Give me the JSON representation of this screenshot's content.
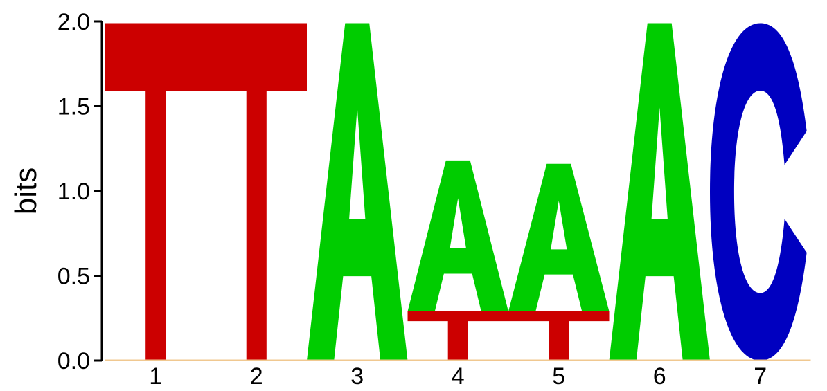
{
  "chart_data": {
    "type": "sequence-logo",
    "ylabel": "bits",
    "ylim": [
      0,
      2
    ],
    "yticks": [
      "0.0",
      "0.5",
      "1.0",
      "1.5",
      "2.0"
    ],
    "positions": [
      "1",
      "2",
      "3",
      "4",
      "5",
      "6",
      "7"
    ],
    "colors": {
      "A": "#00cc00",
      "C": "#0000c0",
      "G": "#ffb300",
      "T": "#cc0000"
    },
    "stacks": [
      [
        {
          "letter": "T",
          "bits": 1.99
        }
      ],
      [
        {
          "letter": "T",
          "bits": 1.99
        }
      ],
      [
        {
          "letter": "A",
          "bits": 1.99
        }
      ],
      [
        {
          "letter": "T",
          "bits": 0.29
        },
        {
          "letter": "A",
          "bits": 0.89
        }
      ],
      [
        {
          "letter": "T",
          "bits": 0.29
        },
        {
          "letter": "A",
          "bits": 0.87
        }
      ],
      [
        {
          "letter": "A",
          "bits": 1.99
        }
      ],
      [
        {
          "letter": "C",
          "bits": 1.99
        }
      ]
    ]
  }
}
